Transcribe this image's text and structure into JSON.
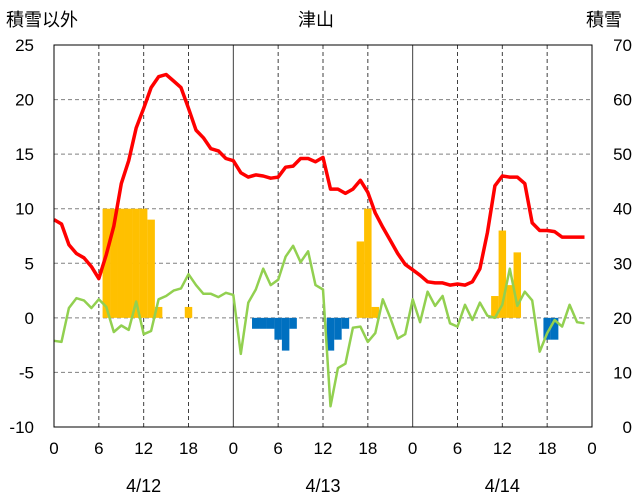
{
  "chart_data": {
    "type": "bar+line",
    "title": "津山",
    "left_axis_label": "積雪以外",
    "right_axis_label": "積雪",
    "left_ticks": [
      "25",
      "20",
      "15",
      "10",
      "5",
      "0",
      "-5",
      "-10"
    ],
    "right_ticks": [
      "70",
      "60",
      "50",
      "40",
      "30",
      "20",
      "10",
      "0"
    ],
    "left_range": [
      -10,
      25
    ],
    "right_range": [
      0,
      70
    ],
    "x_hour_ticks": [
      "0",
      "6",
      "12",
      "18",
      "0",
      "6",
      "12",
      "18",
      "0",
      "6",
      "12",
      "18",
      "0"
    ],
    "x_date_labels": [
      "4/12",
      "4/13",
      "4/14"
    ],
    "x_range_hours": [
      0,
      72
    ],
    "grid": true,
    "series": [
      {
        "color": "#ff0000",
        "values": [
          9.0,
          8.6,
          6.7,
          5.9,
          5.5,
          4.7,
          3.6,
          5.8,
          8.4,
          12.3,
          14.4,
          17.4,
          19.2,
          21.1,
          22.1,
          22.3,
          21.7,
          21.1,
          19.2,
          17.2,
          16.5,
          15.5,
          15.3,
          14.6,
          14.4,
          13.3,
          12.9,
          13.1,
          13.0,
          12.8,
          12.9,
          13.8,
          13.9,
          14.6,
          14.6,
          14.3,
          14.7,
          11.8,
          11.8,
          11.4,
          11.8,
          12.6,
          11.5,
          9.6,
          8.3,
          7.1,
          5.9,
          4.9,
          4.4,
          3.9,
          3.3,
          3.2,
          3.2,
          3.0,
          3.1,
          3.0,
          3.3,
          4.5,
          7.8,
          12.1,
          13.0,
          12.9,
          12.9,
          12.3,
          8.7,
          8.0,
          8.0,
          7.9,
          7.4,
          7.4,
          7.4,
          7.4
        ]
      },
      {
        "color": "#92d050",
        "values": [
          -2.1,
          -2.2,
          0.9,
          1.8,
          1.6,
          0.9,
          1.7,
          1.0,
          -1.3,
          -0.7,
          -1.1,
          1.5,
          -1.5,
          -1.2,
          1.7,
          2.0,
          2.5,
          2.7,
          4.0,
          3.0,
          2.2,
          2.2,
          1.9,
          2.3,
          2.1,
          -3.3,
          1.4,
          2.6,
          4.5,
          3.0,
          3.5,
          5.6,
          6.6,
          5.1,
          6.1,
          3.0,
          2.6,
          -8.1,
          -4.6,
          -4.2,
          -0.9,
          -0.8,
          -2.2,
          -1.4,
          1.7,
          0.0,
          -1.9,
          -1.5,
          1.7,
          -0.4,
          2.4,
          1.1,
          2.0,
          -0.5,
          -0.8,
          1.2,
          -0.2,
          1.4,
          0.2,
          0.0,
          1.2,
          4.5,
          1.1,
          2.4,
          1.6,
          -3.1,
          -1.4,
          -0.2,
          -0.8,
          1.2,
          -0.4,
          -0.5
        ]
      },
      {
        "color": "#ffc000",
        "values": [
          0,
          0,
          0,
          0,
          0,
          0,
          0,
          10,
          10,
          10,
          10,
          10,
          10,
          9,
          1,
          0,
          0,
          0,
          1,
          0,
          0,
          0,
          0,
          0,
          0,
          0,
          0,
          0,
          0,
          0,
          0,
          0,
          0,
          0,
          0,
          0,
          0,
          0,
          0,
          0,
          0,
          7,
          10,
          1,
          0,
          0,
          0,
          0,
          0,
          0,
          0,
          0,
          0,
          0,
          0,
          0,
          0,
          0,
          0,
          2,
          8,
          3,
          6,
          0,
          0,
          0,
          0,
          0,
          0,
          0,
          0,
          0
        ]
      },
      {
        "color": "#0070c0",
        "values": [
          0,
          0,
          0,
          0,
          0,
          0,
          0,
          0,
          0,
          0,
          0,
          0,
          0,
          0,
          0,
          0,
          0,
          0,
          0,
          0,
          0,
          0,
          0,
          0,
          0,
          0,
          0,
          -1,
          -1,
          -1,
          -2,
          -3,
          -1,
          0,
          0,
          0,
          0,
          -3,
          -2,
          -1,
          0,
          0,
          0,
          0,
          0,
          0,
          0,
          0,
          0,
          0,
          0,
          0,
          0,
          0,
          0,
          0,
          0,
          0,
          0,
          0,
          0,
          0,
          0,
          0,
          0,
          0,
          -2,
          -2,
          0,
          0,
          0,
          0
        ]
      }
    ]
  }
}
